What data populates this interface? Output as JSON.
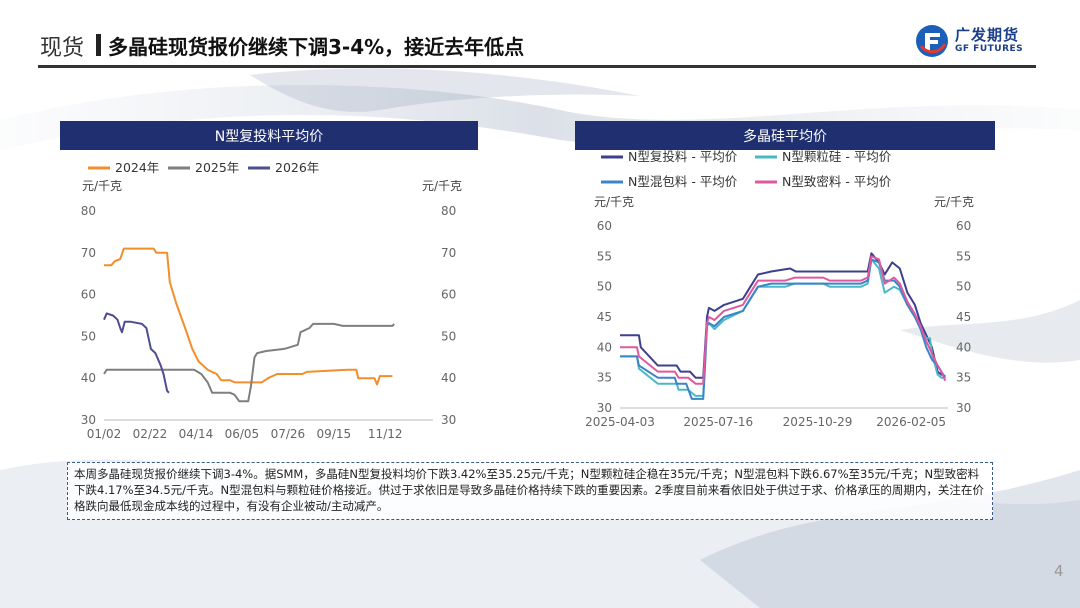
{
  "header": {
    "section": "现货",
    "title": "多晶硅现货报价继续下调3-4%，接近去年低点",
    "logo_cn": "广发期货",
    "logo_en": "GF FUTURES"
  },
  "footer": {
    "summary": "本周多晶硅现货报价继续下调3-4%。据SMM，多晶硅N型复投料均价下跌3.42%至35.25元/千克；N型颗粒硅企稳在35元/千克；N型混包料下跌6.67%至35元/千克；N型致密料下跌4.17%至34.5元/千克。N型混包料与颗粒硅价格接近。供过于求依旧是导致多晶硅价格持续下跌的重要因素。2季度目前来看依旧处于供过于求、价格承压的周期内，关注在价格跌向最低现金成本线的过程中，有没有企业被动/主动减产。",
    "page_number": "4"
  },
  "colors": {
    "title_bar": "#1f2f6f",
    "accent": "#1b3f8b"
  },
  "chart_data": [
    {
      "type": "line",
      "title": "N型复投料平均价",
      "ylabel_left": "元/千克",
      "ylabel_right": "元/千克",
      "ylim": [
        30,
        80
      ],
      "yticks": [
        30,
        40,
        50,
        60,
        70,
        80
      ],
      "x_domain": [
        0,
        365
      ],
      "xtick_labels": [
        {
          "label": "01/02",
          "day": 0
        },
        {
          "label": "02/22",
          "day": 51
        },
        {
          "label": "04/14",
          "day": 102
        },
        {
          "label": "06/05",
          "day": 153
        },
        {
          "label": "07/26",
          "day": 204
        },
        {
          "label": "09/15",
          "day": 255
        },
        {
          "label": "11/12",
          "day": 312
        }
      ],
      "legend_position": "top-left",
      "series": [
        {
          "name": "2024年",
          "color": "#f28e2b",
          "points": [
            [
              0,
              67
            ],
            [
              8,
              67
            ],
            [
              12,
              68
            ],
            [
              18,
              68.5
            ],
            [
              22,
              71
            ],
            [
              40,
              71
            ],
            [
              55,
              71
            ],
            [
              58,
              70
            ],
            [
              70,
              70
            ],
            [
              73,
              63
            ],
            [
              80,
              58
            ],
            [
              90,
              52
            ],
            [
              98,
              47
            ],
            [
              105,
              44
            ],
            [
              115,
              42
            ],
            [
              125,
              41
            ],
            [
              130,
              39.5
            ],
            [
              140,
              39.5
            ],
            [
              145,
              39
            ],
            [
              175,
              39
            ],
            [
              182,
              40
            ],
            [
              192,
              41
            ],
            [
              220,
              41
            ],
            [
              225,
              41.5
            ],
            [
              270,
              42
            ],
            [
              280,
              42
            ],
            [
              282,
              40
            ],
            [
              300,
              40
            ],
            [
              303,
              38.5
            ],
            [
              306,
              40.5
            ],
            [
              320,
              40.5
            ]
          ]
        },
        {
          "name": "2025年",
          "color": "#7f7f7f",
          "points": [
            [
              0,
              41
            ],
            [
              3,
              42
            ],
            [
              60,
              42
            ],
            [
              100,
              42
            ],
            [
              108,
              41
            ],
            [
              115,
              39
            ],
            [
              120,
              36.5
            ],
            [
              140,
              36.5
            ],
            [
              145,
              36
            ],
            [
              150,
              34.5
            ],
            [
              160,
              34.5
            ],
            [
              163,
              38
            ],
            [
              167,
              45
            ],
            [
              170,
              46
            ],
            [
              180,
              46.5
            ],
            [
              200,
              47
            ],
            [
              215,
              48
            ],
            [
              218,
              51
            ],
            [
              228,
              52
            ],
            [
              232,
              53
            ],
            [
              255,
              53
            ],
            [
              265,
              52.5
            ],
            [
              320,
              52.5
            ],
            [
              322,
              53
            ]
          ]
        },
        {
          "name": "2026年",
          "color": "#4e4e8f",
          "points": [
            [
              0,
              54
            ],
            [
              3,
              55.5
            ],
            [
              10,
              55
            ],
            [
              15,
              54
            ],
            [
              18,
              52
            ],
            [
              20,
              51
            ],
            [
              23,
              53.5
            ],
            [
              30,
              53.5
            ],
            [
              42,
              53
            ],
            [
              47,
              52
            ],
            [
              52,
              47
            ],
            [
              57,
              46
            ],
            [
              63,
              43
            ],
            [
              66,
              41
            ],
            [
              68,
              39
            ],
            [
              70,
              37
            ],
            [
              72,
              36.5
            ]
          ]
        }
      ]
    },
    {
      "type": "line",
      "title": "多晶硅平均价",
      "ylabel_left": "元/千克",
      "ylabel_right": "元/千克",
      "ylim": [
        30,
        60
      ],
      "yticks": [
        30,
        35,
        40,
        45,
        50,
        55,
        60
      ],
      "x_domain": [
        0,
        347
      ],
      "xtick_labels": [
        {
          "label": "2025-04-03",
          "day": 0
        },
        {
          "label": "2025-07-16",
          "day": 104
        },
        {
          "label": "2025-10-29",
          "day": 209
        },
        {
          "label": "2026-02-05",
          "day": 308
        }
      ],
      "legend_position": "top",
      "series": [
        {
          "name": "N型复投料 - 平均价",
          "color": "#3d3f8f",
          "points": [
            [
              0,
              42
            ],
            [
              20,
              42
            ],
            [
              22,
              40
            ],
            [
              40,
              37
            ],
            [
              60,
              37
            ],
            [
              64,
              36
            ],
            [
              74,
              36
            ],
            [
              80,
              35
            ],
            [
              88,
              35
            ],
            [
              90,
              40
            ],
            [
              92,
              45
            ],
            [
              94,
              46.5
            ],
            [
              100,
              46
            ],
            [
              110,
              47
            ],
            [
              130,
              48
            ],
            [
              138,
              50
            ],
            [
              146,
              52
            ],
            [
              160,
              52.5
            ],
            [
              180,
              53
            ],
            [
              186,
              52.5
            ],
            [
              230,
              52.5
            ],
            [
              262,
              52.5
            ],
            [
              266,
              55.5
            ],
            [
              274,
              54
            ],
            [
              280,
              52
            ],
            [
              288,
              54
            ],
            [
              296,
              53
            ],
            [
              304,
              49
            ],
            [
              312,
              47
            ],
            [
              318,
              44
            ],
            [
              324,
              42
            ],
            [
              330,
              40
            ],
            [
              336,
              36
            ],
            [
              340,
              35.5
            ],
            [
              344,
              35.25
            ]
          ]
        },
        {
          "name": "N型颗粒硅 - 平均价",
          "color": "#4bb8c8",
          "points": [
            [
              0,
              38.5
            ],
            [
              18,
              38.5
            ],
            [
              20,
              36.5
            ],
            [
              40,
              34
            ],
            [
              60,
              34
            ],
            [
              62,
              33
            ],
            [
              72,
              33
            ],
            [
              80,
              32
            ],
            [
              88,
              32
            ],
            [
              90,
              38
            ],
            [
              92,
              44
            ],
            [
              94,
              44
            ],
            [
              100,
              43
            ],
            [
              110,
              44.5
            ],
            [
              130,
              46
            ],
            [
              138,
              48
            ],
            [
              146,
              50
            ],
            [
              175,
              50
            ],
            [
              185,
              50.5
            ],
            [
              215,
              50.5
            ],
            [
              222,
              50
            ],
            [
              255,
              50
            ],
            [
              262,
              50.5
            ],
            [
              266,
              54.5
            ],
            [
              274,
              53
            ],
            [
              280,
              49
            ],
            [
              290,
              50
            ],
            [
              296,
              49.5
            ],
            [
              304,
              47
            ],
            [
              312,
              45
            ],
            [
              318,
              43
            ],
            [
              324,
              41.5
            ],
            [
              328,
              41.5
            ],
            [
              330,
              39
            ],
            [
              336,
              35.5
            ],
            [
              340,
              35
            ],
            [
              344,
              35
            ]
          ]
        },
        {
          "name": "N型混包料 - 平均价",
          "color": "#3a84c8",
          "points": [
            [
              0,
              38.5
            ],
            [
              18,
              38.5
            ],
            [
              20,
              37
            ],
            [
              40,
              35
            ],
            [
              58,
              35
            ],
            [
              60,
              34
            ],
            [
              70,
              34
            ],
            [
              76,
              31.5
            ],
            [
              88,
              31.5
            ],
            [
              90,
              37
            ],
            [
              92,
              43.5
            ],
            [
              94,
              44
            ],
            [
              100,
              43.5
            ],
            [
              110,
              45
            ],
            [
              130,
              46
            ],
            [
              138,
              48
            ],
            [
              146,
              50
            ],
            [
              160,
              50.5
            ],
            [
              185,
              50.5
            ],
            [
              215,
              50.5
            ],
            [
              222,
              50.5
            ],
            [
              255,
              50.5
            ],
            [
              262,
              51
            ],
            [
              266,
              54.5
            ],
            [
              274,
              54
            ],
            [
              280,
              51
            ],
            [
              290,
              51
            ],
            [
              296,
              50
            ],
            [
              304,
              47
            ],
            [
              312,
              45
            ],
            [
              318,
              43
            ],
            [
              324,
              40
            ],
            [
              330,
              38
            ],
            [
              336,
              37
            ],
            [
              340,
              36
            ],
            [
              344,
              35
            ]
          ]
        },
        {
          "name": "N型致密料 - 平均价",
          "color": "#e0589e",
          "points": [
            [
              0,
              40
            ],
            [
              18,
              40
            ],
            [
              20,
              38.5
            ],
            [
              40,
              36
            ],
            [
              58,
              36
            ],
            [
              62,
              35
            ],
            [
              72,
              35
            ],
            [
              80,
              34
            ],
            [
              88,
              34
            ],
            [
              90,
              39
            ],
            [
              92,
              44
            ],
            [
              94,
              45
            ],
            [
              100,
              44.5
            ],
            [
              110,
              46
            ],
            [
              130,
              47
            ],
            [
              138,
              49
            ],
            [
              146,
              51
            ],
            [
              175,
              51
            ],
            [
              185,
              51.5
            ],
            [
              215,
              51.5
            ],
            [
              222,
              51
            ],
            [
              255,
              51
            ],
            [
              262,
              51.5
            ],
            [
              266,
              55
            ],
            [
              274,
              54.5
            ],
            [
              280,
              50.5
            ],
            [
              290,
              51.5
            ],
            [
              296,
              50.5
            ],
            [
              304,
              47.5
            ],
            [
              312,
              45.5
            ],
            [
              318,
              43.5
            ],
            [
              324,
              41
            ],
            [
              330,
              39
            ],
            [
              336,
              37
            ],
            [
              340,
              36
            ],
            [
              344,
              34.5
            ]
          ]
        }
      ]
    }
  ]
}
